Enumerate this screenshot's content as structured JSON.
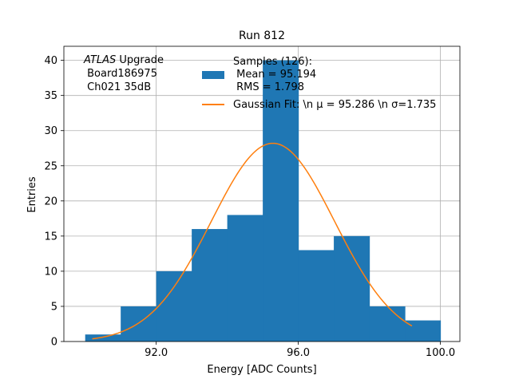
{
  "chart_data": {
    "type": "bar",
    "title": "Run 812",
    "xlabel": "Energy [ADC Counts]",
    "ylabel": "Entries",
    "xlim": [
      89.4,
      100.55
    ],
    "ylim": [
      0,
      42
    ],
    "grid": true,
    "x_ticks": [
      92.0,
      96.0,
      100.0
    ],
    "x_tick_labels": [
      "92.0",
      "96.0",
      "100.0"
    ],
    "y_ticks": [
      0,
      5,
      10,
      15,
      20,
      25,
      30,
      35,
      40
    ],
    "y_tick_labels": [
      "0",
      "5",
      "10",
      "15",
      "20",
      "25",
      "30",
      "35",
      "40"
    ],
    "histogram": {
      "bin_edges": [
        90,
        91,
        92,
        93,
        94,
        95,
        96,
        97,
        98,
        99,
        100
      ],
      "counts": [
        1,
        5,
        10,
        16,
        18,
        40,
        13,
        15,
        5,
        3
      ],
      "color": "#1f77b4"
    },
    "fit": {
      "mu": 95.286,
      "sigma": 1.735,
      "amplitude": 28.2,
      "x_range": [
        90.2,
        99.2
      ],
      "color": "#ff7f0e"
    },
    "legend": {
      "placement": "top-center",
      "entries": [
        {
          "kind": "patch",
          "color": "#1f77b4",
          "lines": [
            "Samples (126):",
            " Mean = 95.194",
            " RMS = 1.798"
          ]
        },
        {
          "kind": "line",
          "color": "#ff7f0e",
          "text": "Gaussian Fit: \\n μ = 95.286 \\n σ=1.735"
        }
      ]
    },
    "annotation": {
      "atlas_italic": "ATLAS",
      "atlas_rest": " Upgrade",
      "line2": " Board186975",
      "line3": " Ch021 35dB"
    }
  }
}
